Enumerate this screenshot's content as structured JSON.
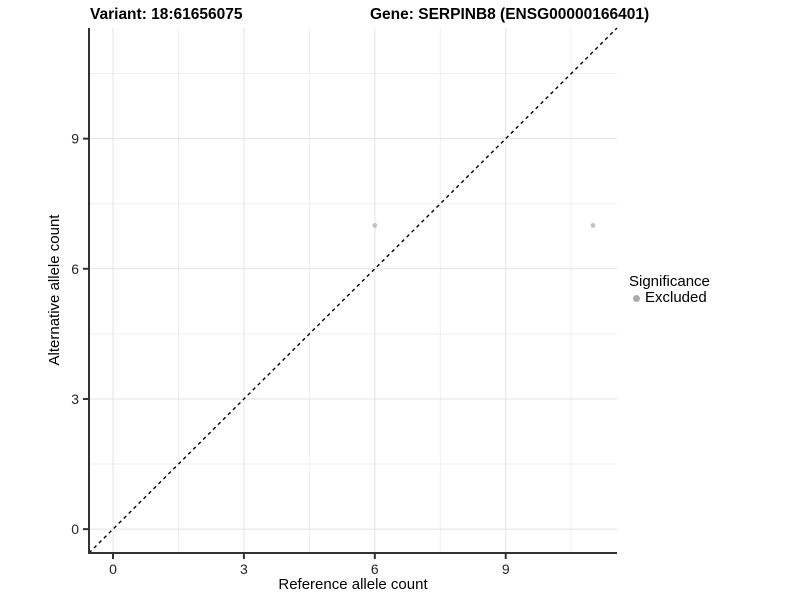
{
  "chart_data": {
    "type": "scatter",
    "title_left": "Variant: 18:61656075",
    "title_right": "Gene: SERPINB8 (ENSG00000166401)",
    "xlabel": "Reference allele count",
    "ylabel": "Alternative allele count",
    "xlim": [
      -0.55,
      11.55
    ],
    "ylim": [
      -0.55,
      11.55
    ],
    "x_major_ticks": [
      0,
      3,
      6,
      9
    ],
    "y_major_ticks": [
      0,
      3,
      6,
      9
    ],
    "x_minor_ticks": [
      1.5,
      4.5,
      7.5,
      10.5
    ],
    "y_minor_ticks": [
      1.5,
      4.5,
      7.5,
      10.5
    ],
    "grid": true,
    "identity_line": {
      "slope": 1,
      "intercept": 0,
      "style": "dashed",
      "color": "#000000"
    },
    "series": [
      {
        "name": "Excluded",
        "color": "#c2c2c2",
        "point_radius": 2.4,
        "points": [
          {
            "x": 6,
            "y": 7
          },
          {
            "x": 11,
            "y": 7
          }
        ]
      }
    ],
    "legend": {
      "title": "Significance",
      "position": "right",
      "items": [
        {
          "label": "Excluded",
          "color": "#ababab"
        }
      ]
    }
  },
  "colors": {
    "background": "#ffffff",
    "grid_major": "#e3e3e3",
    "grid_minor": "#efefef",
    "axis_line": "#333333",
    "tick_mark": "#333333",
    "tick_label": "#262626"
  }
}
